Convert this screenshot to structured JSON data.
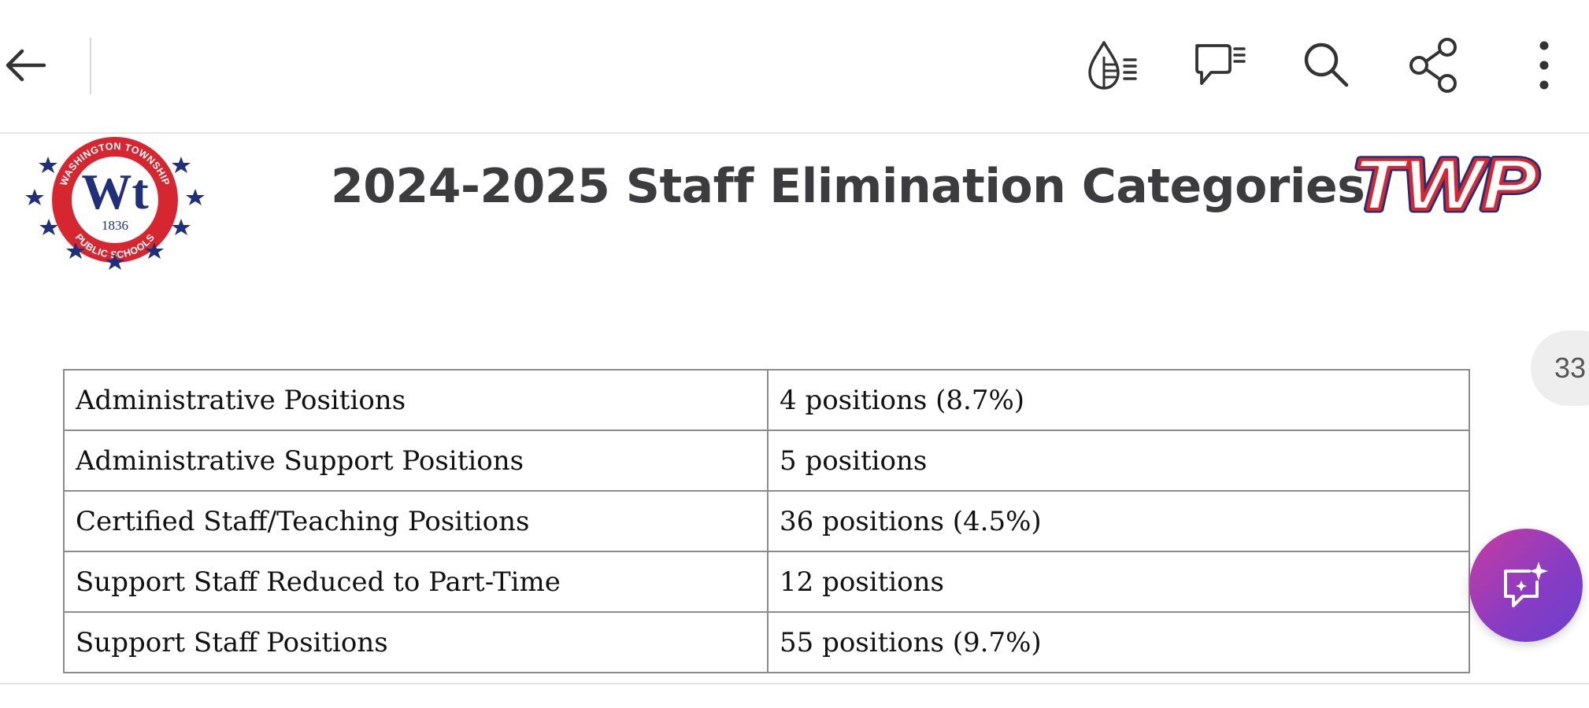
{
  "toolbar": {
    "icons": [
      "back-arrow-icon",
      "read-aloud-icon",
      "comment-icon",
      "search-icon",
      "share-icon",
      "more-vertical-icon"
    ]
  },
  "document": {
    "title": "2024-2025 Staff Elimination Categories",
    "logo_left": {
      "ring_top_text": "WASHINGTON TOWNSHIP",
      "monogram": "Wt",
      "year": "1836",
      "ring_bottom_text": "PUBLIC SCHOOLS"
    },
    "logo_right": {
      "text": "TWP"
    },
    "table": [
      {
        "category": "Administrative Positions",
        "count": "4 positions (8.7%)"
      },
      {
        "category": "Administrative Support Positions",
        "count": "5 positions"
      },
      {
        "category": "Certified Staff/Teaching Positions",
        "count": "36 positions (4.5%)"
      },
      {
        "category": "Support Staff Reduced to Part-Time",
        "count": "12 positions"
      },
      {
        "category": "Support Staff Positions",
        "count": "55 positions (9.7%)"
      }
    ]
  },
  "page_badge": "33",
  "colors": {
    "seal_red": "#d6262f",
    "seal_navy": "#1f2f7a",
    "fab_gradient_start": "#c83ba0",
    "fab_gradient_end": "#6a3fd0"
  }
}
